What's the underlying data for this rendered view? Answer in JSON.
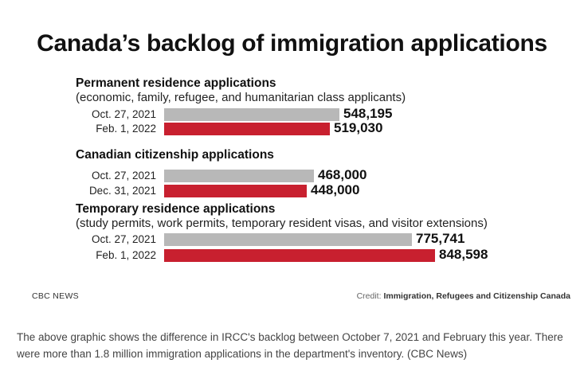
{
  "chart_data": {
    "type": "bar",
    "orientation": "horizontal",
    "title": "Canada’s backlog of immigration applications",
    "groups": [
      {
        "title": "Permanent residence applications",
        "subtitle": "(economic, family, refugee, and humanitarian class applicants)",
        "rows": [
          {
            "label": "Oct. 27, 2021",
            "value": 548195,
            "value_label": "548,195",
            "color": "#b8b8b8"
          },
          {
            "label": "Feb. 1, 2022",
            "value": 519030,
            "value_label": "519,030",
            "color": "#c8202f"
          }
        ]
      },
      {
        "title": "Canadian citizenship applications",
        "subtitle": "",
        "rows": [
          {
            "label": "Oct. 27, 2021",
            "value": 468000,
            "value_label": "468,000",
            "color": "#b8b8b8"
          },
          {
            "label": "Dec. 31, 2021",
            "value": 448000,
            "value_label": "448,000",
            "color": "#c8202f"
          }
        ]
      },
      {
        "title": "Temporary residence applications",
        "subtitle": "(study permits, work permits, temporary resident visas, and visitor extensions)",
        "rows": [
          {
            "label": "Oct. 27, 2021",
            "value": 775741,
            "value_label": "775,741",
            "color": "#b8b8b8"
          },
          {
            "label": "Feb. 1, 2022",
            "value": 848598,
            "value_label": "848,598",
            "color": "#c8202f"
          }
        ]
      }
    ]
  },
  "source": {
    "outlet": "CBC NEWS",
    "credit_prefix": "Credit:",
    "credit_name": "Immigration, Refugees and Citizenship Canada"
  },
  "caption": "The above graphic shows the difference in IRCC's backlog between October 7, 2021 and February this year. There were more than 1.8 million immigration applications in the department's inventory. (CBC News)"
}
